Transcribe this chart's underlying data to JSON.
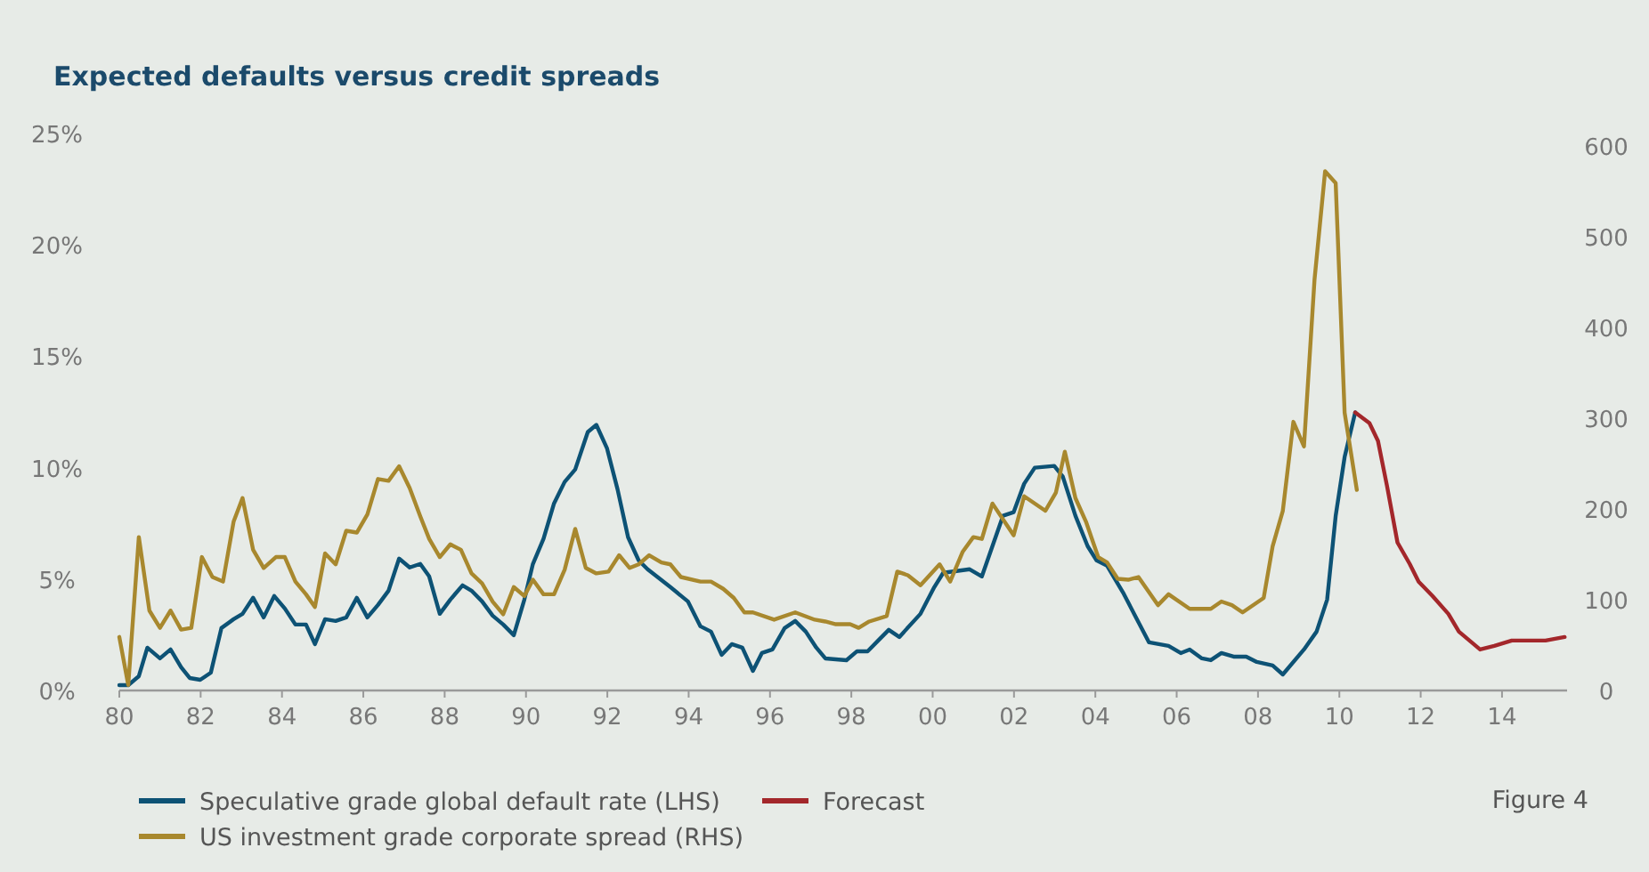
{
  "chart_data": {
    "type": "line",
    "title": "Expected defaults versus credit spreads",
    "annotations": [
      "Figure 4"
    ],
    "xlim": [
      1980,
      2015.6
    ],
    "xticks": [
      {
        "value": 1980,
        "label": "80"
      },
      {
        "value": 1982,
        "label": "82"
      },
      {
        "value": 1984,
        "label": "84"
      },
      {
        "value": 1986,
        "label": "86"
      },
      {
        "value": 1988,
        "label": "88"
      },
      {
        "value": 1990,
        "label": "90"
      },
      {
        "value": 1992,
        "label": "92"
      },
      {
        "value": 1994,
        "label": "94"
      },
      {
        "value": 1996,
        "label": "96"
      },
      {
        "value": 1998,
        "label": "98"
      },
      {
        "value": 2000,
        "label": "00"
      },
      {
        "value": 2002,
        "label": "02"
      },
      {
        "value": 2004,
        "label": "04"
      },
      {
        "value": 2006,
        "label": "06"
      },
      {
        "value": 2008,
        "label": "08"
      },
      {
        "value": 2010,
        "label": "10"
      },
      {
        "value": 2012,
        "label": "12"
      },
      {
        "value": 2014,
        "label": "14"
      }
    ],
    "ylim": [
      0,
      25
    ],
    "yticks": [
      {
        "value": 0,
        "label": "0%"
      },
      {
        "value": 5,
        "label": "5%"
      },
      {
        "value": 10,
        "label": "10%"
      },
      {
        "value": 15,
        "label": "15%"
      },
      {
        "value": 20,
        "label": "20%"
      },
      {
        "value": 25,
        "label": "25%"
      }
    ],
    "y2lim": [
      0,
      600
    ],
    "y2ticks": [
      0,
      100,
      200,
      300,
      400,
      500,
      600
    ],
    "grid": false,
    "legend": "bottom",
    "line_style": "solid",
    "marker": "none",
    "series": [
      {
        "name": "Speculative grade global default rate (LHS)",
        "color": "#0d5275",
        "axis": "y",
        "x": [
          1980.0,
          1980.22,
          1980.48,
          1980.69,
          1981.0,
          1981.26,
          1981.52,
          1981.73,
          1981.99,
          1982.25,
          1982.51,
          1982.81,
          1983.03,
          1983.29,
          1983.55,
          1983.81,
          1984.07,
          1984.33,
          1984.59,
          1984.81,
          1985.06,
          1985.32,
          1985.58,
          1985.84,
          1986.1,
          1986.36,
          1986.62,
          1986.88,
          1987.14,
          1987.4,
          1987.62,
          1987.88,
          1988.14,
          1988.44,
          1988.66,
          1988.92,
          1989.18,
          1989.44,
          1989.7,
          1989.96,
          1990.17,
          1990.43,
          1990.69,
          1990.95,
          1991.21,
          1991.52,
          1991.73,
          1991.99,
          1992.25,
          1992.51,
          1992.77,
          1992.99,
          1993.55,
          1993.98,
          1994.29,
          1994.55,
          1994.81,
          1995.06,
          1995.32,
          1995.58,
          1995.8,
          1996.06,
          1996.36,
          1996.62,
          1996.88,
          1997.14,
          1997.36,
          1997.88,
          1998.14,
          1998.4,
          1998.66,
          1998.92,
          1999.18,
          1999.7,
          2000.04,
          2000.26,
          2000.91,
          2001.21,
          2001.47,
          2001.73,
          2001.99,
          2002.25,
          2002.51,
          2002.99,
          2003.2,
          2003.51,
          2003.81,
          2004.03,
          2004.29,
          2004.68,
          2005.32,
          2005.8,
          2006.1,
          2006.32,
          2006.62,
          2006.84,
          2007.1,
          2007.4,
          2007.71,
          2007.97,
          2008.36,
          2008.61,
          2009.13,
          2009.44,
          2009.7,
          2009.91,
          2010.13,
          2010.39
        ],
        "values": [
          0.24,
          0.24,
          0.64,
          1.92,
          1.44,
          1.84,
          1.04,
          0.56,
          0.48,
          0.8,
          2.8,
          3.2,
          3.44,
          4.16,
          3.28,
          4.24,
          3.68,
          2.96,
          2.96,
          2.08,
          3.2,
          3.12,
          3.28,
          4.16,
          3.28,
          3.84,
          4.48,
          5.92,
          5.52,
          5.68,
          5.12,
          3.44,
          4.08,
          4.72,
          4.48,
          4.0,
          3.36,
          2.96,
          2.48,
          4.08,
          5.68,
          6.8,
          8.4,
          9.36,
          9.92,
          11.6,
          11.92,
          10.88,
          9.04,
          6.88,
          5.84,
          5.44,
          4.64,
          4.0,
          2.88,
          2.64,
          1.6,
          2.08,
          1.92,
          0.88,
          1.68,
          1.84,
          2.8,
          3.12,
          2.64,
          1.92,
          1.44,
          1.36,
          1.76,
          1.76,
          2.24,
          2.72,
          2.4,
          3.44,
          4.64,
          5.28,
          5.44,
          5.12,
          6.48,
          7.84,
          8.0,
          9.28,
          10.0,
          10.08,
          9.6,
          7.84,
          6.48,
          5.84,
          5.6,
          4.4,
          2.16,
          2.0,
          1.68,
          1.84,
          1.44,
          1.36,
          1.68,
          1.52,
          1.52,
          1.28,
          1.12,
          0.72,
          1.84,
          2.64,
          4.08,
          7.84,
          10.48,
          12.48
        ]
      },
      {
        "name": "US investment grade corporate spread (RHS)",
        "color": "#a8882e",
        "axis": "y2",
        "x": [
          1980.0,
          1980.22,
          1980.48,
          1980.74,
          1981.0,
          1981.26,
          1981.52,
          1981.77,
          1982.03,
          1982.29,
          1982.55,
          1982.81,
          1983.03,
          1983.29,
          1983.55,
          1983.85,
          1984.07,
          1984.33,
          1984.59,
          1984.81,
          1985.06,
          1985.32,
          1985.58,
          1985.84,
          1986.1,
          1986.36,
          1986.62,
          1986.88,
          1987.14,
          1987.4,
          1987.62,
          1987.88,
          1988.14,
          1988.4,
          1988.66,
          1988.92,
          1989.18,
          1989.44,
          1989.7,
          1989.96,
          1990.17,
          1990.43,
          1990.69,
          1990.95,
          1991.21,
          1991.47,
          1991.73,
          1992.03,
          1992.29,
          1992.55,
          1992.77,
          1993.03,
          1993.33,
          1993.55,
          1993.81,
          1994.29,
          1994.55,
          1994.85,
          1995.11,
          1995.37,
          1995.58,
          1996.1,
          1996.62,
          1997.1,
          1997.36,
          1997.62,
          1997.97,
          1998.18,
          1998.44,
          1998.87,
          1999.13,
          1999.39,
          1999.7,
          2000.17,
          2000.43,
          2000.74,
          2001.0,
          2001.21,
          2001.47,
          2001.99,
          2002.25,
          2002.77,
          2003.03,
          2003.25,
          2003.51,
          2003.77,
          2004.07,
          2004.29,
          2004.55,
          2004.81,
          2005.06,
          2005.54,
          2005.8,
          2006.32,
          2006.84,
          2007.1,
          2007.36,
          2007.62,
          2008.14,
          2008.36,
          2008.61,
          2008.87,
          2009.13,
          2009.39,
          2009.65,
          2009.91,
          2010.13,
          2010.43
        ],
        "values": [
          59,
          6,
          169,
          88,
          69,
          88,
          67,
          69,
          147,
          125,
          120,
          186,
          212,
          155,
          135,
          147,
          147,
          120,
          106,
          92,
          151,
          139,
          176,
          174,
          194,
          233,
          231,
          247,
          223,
          192,
          167,
          147,
          161,
          155,
          129,
          118,
          98,
          84,
          114,
          104,
          122,
          106,
          106,
          133,
          178,
          135,
          129,
          131,
          149,
          135,
          139,
          149,
          141,
          139,
          125,
          120,
          120,
          112,
          102,
          86,
          86,
          78,
          86,
          78,
          76,
          73,
          73,
          69,
          76,
          82,
          131,
          127,
          116,
          139,
          120,
          153,
          169,
          167,
          206,
          171,
          214,
          198,
          218,
          263,
          212,
          186,
          147,
          141,
          123,
          122,
          125,
          94,
          106,
          90,
          90,
          98,
          94,
          86,
          102,
          159,
          198,
          296,
          269,
          453,
          572,
          559,
          306,
          221
        ]
      },
      {
        "name": "Forecast",
        "color": "#a3272b",
        "axis": "y",
        "x": [
          2010.39,
          2010.74,
          2010.95,
          2011.17,
          2011.43,
          2011.73,
          2011.95,
          2012.29,
          2012.68,
          2012.94,
          2013.46,
          2013.81,
          2014.24,
          2014.63,
          2015.07,
          2015.54
        ],
        "values": [
          12.48,
          12.0,
          11.2,
          9.2,
          6.64,
          5.68,
          4.88,
          4.24,
          3.44,
          2.64,
          1.84,
          2.0,
          2.24,
          2.24,
          2.24,
          2.4
        ]
      }
    ]
  }
}
